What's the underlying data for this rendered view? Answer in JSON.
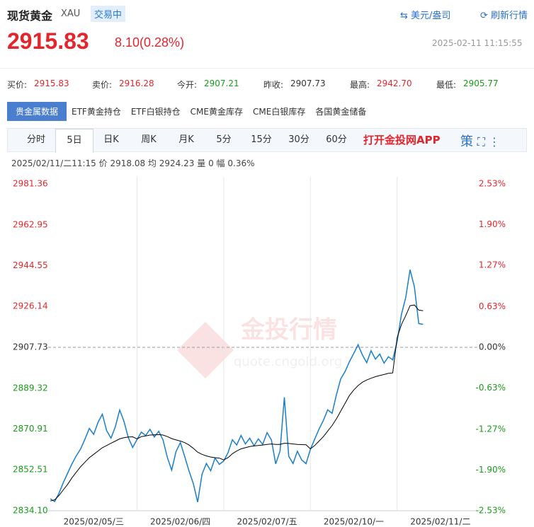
{
  "header": {
    "title": "现货黄金",
    "code": "XAU",
    "status": "交易中",
    "unit": "美元/盎司",
    "refresh": "刷新行情",
    "price": "2915.83",
    "change": "8.10(0.28%)",
    "time": "2025-02-11 11:15:55"
  },
  "quotes": [
    {
      "label": "买价:",
      "value": "2915.83"
    },
    {
      "label": "卖价:",
      "value": "2916.28"
    },
    {
      "label": "今开:",
      "value": "2907.21"
    },
    {
      "label": "昨收:",
      "value": "2907.73"
    },
    {
      "label": "最高:",
      "value": "2942.70"
    },
    {
      "label": "最低:",
      "value": "2905.77"
    }
  ],
  "tabs": [
    "贵金属数据",
    "ETF黄金持仓",
    "ETF白银持仓",
    "CME黄金库存",
    "CME白银库存",
    "各国黄金储备"
  ],
  "periods": [
    "分时",
    "5日",
    "日K",
    "周K",
    "月K",
    "5分",
    "15分",
    "30分",
    "60分"
  ],
  "app_link": "打开金投网APP",
  "icon_text": "策",
  "info": {
    "time": "2025/02/11/二11:15",
    "price_label": "价",
    "price": "2918.08",
    "avg_label": "均",
    "avg": "2924.23",
    "vol_label": "量",
    "vol": "0",
    "amp_label": "幅",
    "amp": "0.36%"
  },
  "watermark": {
    "brand": "金投行情",
    "url": "quote.cngold.org"
  },
  "chart_data": {
    "type": "line",
    "categories": [
      null,
      null,
      null,
      null,
      null,
      null,
      null,
      null,
      null,
      null,
      "2025/02/05/三",
      null,
      null,
      null,
      null,
      null,
      null,
      null,
      null,
      null,
      null,
      null,
      null,
      null,
      null,
      null,
      null,
      null,
      null,
      null,
      "2025/02/06/四",
      null,
      null,
      null,
      null,
      null,
      null,
      null,
      null,
      null,
      null,
      null,
      null,
      null,
      null,
      null,
      null,
      null,
      null,
      null,
      "2025/02/07/五",
      null,
      null,
      null,
      null,
      null,
      null,
      null,
      null,
      null,
      null,
      null,
      null,
      null,
      null,
      null,
      null,
      null,
      null,
      null,
      "2025/02/10/一",
      null,
      null,
      null,
      null,
      null,
      null,
      null,
      null,
      null,
      null,
      null,
      null,
      null,
      null,
      null,
      null,
      null,
      null,
      null,
      "2025/02/11/二",
      null,
      null,
      null,
      null,
      null,
      null,
      null,
      null,
      null
    ],
    "series": [
      {
        "name": "价",
        "color": "#1a7fc9",
        "values": [
          2839.5,
          2838.2,
          2842.0,
          2846.8,
          2851.0,
          2855.3,
          2858.9,
          2862.0,
          2866.4,
          2871.2,
          2868.5,
          2873.9,
          2877.6,
          2870.2,
          2866.8,
          2872.0,
          2879.5,
          2874.3,
          2867.0,
          2862.6,
          2866.2,
          2869.5,
          2868.0,
          2870.8,
          2867.3,
          2869.9,
          2866.0,
          2858.1,
          2852.4,
          2860.7,
          2864.8,
          2858.5,
          2852.0,
          2846.3,
          2838.0,
          2850.6,
          2855.4,
          2852.1,
          2857.8,
          2855.0,
          2856.5,
          2860.3,
          2866.1,
          2863.7,
          2868.0,
          2864.2,
          2866.8,
          2863.4,
          2866.5,
          2864.0,
          2869.3,
          2866.0,
          2855.2,
          2861.0,
          2885.2,
          2858.6,
          2855.4,
          2860.9,
          2857.0,
          2855.3,
          2861.8,
          2866.4,
          2870.9,
          2874.8,
          2879.6,
          2878.0,
          2886.3,
          2893.5,
          2896.8,
          2901.2,
          2905.0,
          2908.9,
          2904.3,
          2900.8,
          2906.2,
          2902.4,
          2904.7,
          2900.6,
          2903.5,
          2902.1,
          2910.3,
          2922.5,
          2930.2,
          2942.7,
          2935.0,
          2918.4,
          2918.08,
          null,
          null,
          null,
          null,
          null,
          null,
          null,
          null,
          null,
          null,
          null,
          null,
          null
        ]
      },
      {
        "name": "均",
        "color": "#000000",
        "values": [
          2838.5,
          2839,
          2841,
          2843.5,
          2846,
          2849,
          2851.5,
          2854,
          2856,
          2858,
          2859.5,
          2861,
          2862.5,
          2863.5,
          2864.5,
          2865.5,
          2866.5,
          2867,
          2867.3,
          2867.4,
          2866.5,
          2867.5,
          2867.8,
          2868.2,
          2868.3,
          2868.4,
          2868.2,
          2867.5,
          2866.6,
          2866,
          2865.5,
          2864.8,
          2863.7,
          2862.2,
          2860.5,
          2859.5,
          2858.8,
          2858.3,
          2858,
          2857.8,
          2857,
          2858,
          2859.8,
          2861,
          2862,
          2862.5,
          2863,
          2863.3,
          2863.5,
          2863.7,
          2864,
          2864.2,
          2864,
          2864,
          2864.5,
          2864.4,
          2864.2,
          2864,
          2863.9,
          2863.8,
          2862,
          2863.5,
          2865.5,
          2867.5,
          2870,
          2872.5,
          2875.5,
          2879,
          2882.5,
          2886,
          2888.5,
          2890.5,
          2892,
          2893,
          2893.8,
          2894.5,
          2895,
          2895.5,
          2896,
          2896.2,
          2912,
          2918,
          2922,
          2926.5,
          2926.8,
          2924.5,
          2924.23,
          null,
          null,
          null,
          null,
          null,
          null,
          null,
          null,
          null,
          null,
          null,
          null,
          null
        ]
      }
    ],
    "ylim": [
      2834.1,
      2981.36
    ],
    "yticks": [
      {
        "value": 2834.1,
        "label": "2834.10"
      },
      2852.51,
      2870.91,
      2889.32,
      2907.73,
      2926.14,
      2944.55,
      2962.95,
      2981.36
    ],
    "y2lim": [
      -2.53,
      2.53
    ],
    "y2ticks": [
      {
        "value": -2.53,
        "label": "-2.53%"
      },
      {
        "value": -1.9,
        "label": "-1.90%"
      },
      {
        "value": -1.27,
        "label": "-1.27%"
      },
      {
        "value": -0.63,
        "label": "-0.63%"
      },
      {
        "value": 0,
        "label": "0.00%"
      },
      {
        "value": 0.63,
        "label": "0.63%"
      },
      {
        "value": 1.27,
        "label": "1.27%"
      },
      {
        "value": 1.9,
        "label": "1.90%"
      },
      {
        "value": 2.53,
        "label": "2.53%"
      }
    ],
    "baseline": 2907.73,
    "grid": false,
    "legend": false
  }
}
